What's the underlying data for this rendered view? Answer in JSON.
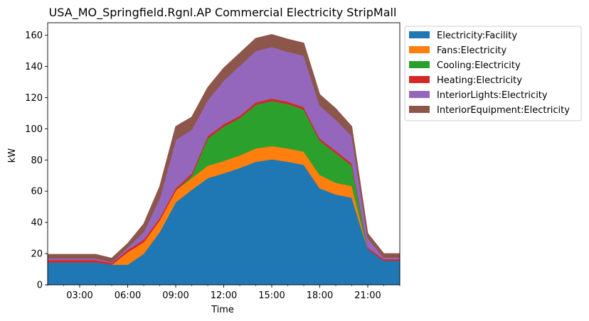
{
  "chart_data": {
    "type": "area",
    "title": "USA_MO_Springfield.Rgnl.AP Commercial Electricity StripMall",
    "xlabel": "Time",
    "ylabel": "kW",
    "x_hours": [
      1,
      2,
      3,
      4,
      5,
      6,
      7,
      8,
      9,
      10,
      11,
      12,
      13,
      14,
      15,
      16,
      17,
      18,
      19,
      20,
      21,
      22,
      23
    ],
    "x_ticks": [
      {
        "hour": 3,
        "label": "03:00"
      },
      {
        "hour": 6,
        "label": "06:00"
      },
      {
        "hour": 9,
        "label": "09:00"
      },
      {
        "hour": 12,
        "label": "12:00"
      },
      {
        "hour": 15,
        "label": "15:00"
      },
      {
        "hour": 18,
        "label": "18:00"
      },
      {
        "hour": 21,
        "label": "21:00"
      }
    ],
    "xlim": [
      1,
      23
    ],
    "ylim": [
      0,
      168
    ],
    "y_ticks": [
      0,
      20,
      40,
      60,
      80,
      100,
      120,
      140,
      160
    ],
    "legend_position": "outside-right",
    "series": [
      {
        "name": "Electricity:Facility",
        "color": "#1f77b4",
        "values": [
          14.5,
          14.5,
          14.5,
          14.5,
          13,
          13,
          20,
          34,
          53,
          61,
          68.5,
          71.5,
          75,
          79,
          80.5,
          79,
          77,
          62,
          58,
          56,
          23,
          15.5,
          15.5
        ]
      },
      {
        "name": "Fans:Electricity",
        "color": "#ff7f0e",
        "values": [
          0,
          0,
          0,
          0,
          0,
          8,
          7.5,
          7.5,
          7.5,
          7.5,
          8,
          8,
          8,
          8.5,
          8.5,
          8.5,
          8.5,
          8.5,
          7.5,
          7.5,
          0,
          0,
          0
        ]
      },
      {
        "name": "Cooling:Electricity",
        "color": "#2ca02c",
        "values": [
          0,
          0,
          0,
          0,
          0,
          0,
          0,
          0,
          0,
          1.5,
          17.5,
          22,
          24,
          28,
          29,
          28.5,
          27,
          22,
          19,
          13,
          0,
          0,
          0
        ]
      },
      {
        "name": "Heating:Electricity",
        "color": "#d62728",
        "values": [
          1.5,
          1.5,
          1.5,
          1.5,
          1,
          1.5,
          1.5,
          1.5,
          1.5,
          1.5,
          1.5,
          1.5,
          1.5,
          1.5,
          1.5,
          1.5,
          1.5,
          1.5,
          1.5,
          1.5,
          1,
          1,
          1
        ]
      },
      {
        "name": "InteriorLights:Electricity",
        "color": "#9467bd",
        "values": [
          1,
          1,
          1,
          1,
          0.5,
          1.5,
          5,
          12.5,
          31,
          28,
          23,
          28,
          32,
          33,
          33,
          32,
          33,
          21,
          20,
          17.5,
          6,
          1,
          1
        ]
      },
      {
        "name": "InteriorEquipment:Electricity",
        "color": "#8c564b",
        "values": [
          2.5,
          2.5,
          2.5,
          2.5,
          2.5,
          2.5,
          5,
          7.5,
          8.5,
          8,
          8,
          8,
          8,
          8,
          8,
          8,
          8,
          7,
          7,
          6,
          3,
          2.5,
          2.5
        ]
      }
    ]
  }
}
